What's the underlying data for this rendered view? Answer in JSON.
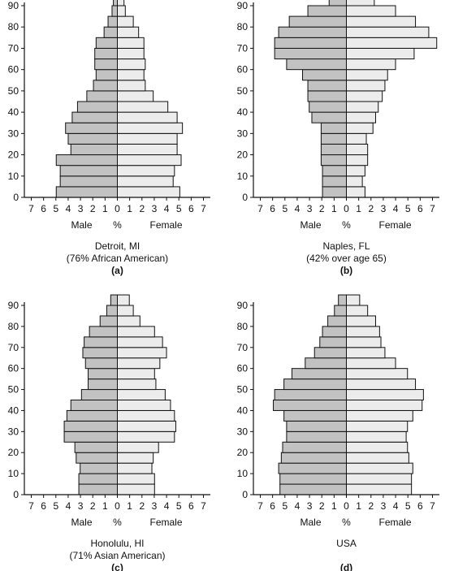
{
  "chart_data": [
    {
      "type": "bar",
      "panel_label": "(a)",
      "caption": [
        "Detroit, MI",
        "(76% African American)"
      ],
      "xlabel_left": "Male",
      "xlabel_mid": "%",
      "xlabel_right": "Female",
      "categories": [
        0,
        5,
        10,
        15,
        20,
        25,
        30,
        35,
        40,
        45,
        50,
        55,
        60,
        65,
        70,
        75,
        80,
        85,
        90
      ],
      "y_ticks": [
        0,
        10,
        20,
        30,
        40,
        50,
        60,
        70,
        80,
        90
      ],
      "x_ticks": [
        "7",
        "6",
        "5",
        "4",
        "3",
        "2",
        "1",
        "0",
        "1",
        "2",
        "3",
        "4",
        "5",
        "6",
        "7"
      ],
      "xlim": [
        -7,
        7
      ],
      "ylim": [
        0,
        95
      ],
      "series": [
        {
          "name": "Male",
          "values": [
            4.6,
            4.3,
            4.3,
            4.6,
            3.5,
            3.7,
            3.9,
            3.4,
            3.0,
            2.3,
            1.8,
            1.6,
            1.7,
            1.7,
            1.6,
            1.0,
            0.7,
            0.4,
            0.3
          ]
        },
        {
          "name": "Female",
          "values": [
            4.7,
            4.2,
            4.3,
            4.8,
            4.5,
            4.5,
            4.9,
            4.5,
            3.8,
            2.7,
            2.1,
            2.0,
            2.1,
            2.0,
            2.0,
            1.6,
            1.2,
            0.6,
            0.5
          ]
        }
      ]
    },
    {
      "type": "bar",
      "panel_label": "(b)",
      "caption": [
        "Naples, FL",
        "(42% over age 65)"
      ],
      "xlabel_left": "Male",
      "xlabel_mid": "%",
      "xlabel_right": "Female",
      "categories": [
        0,
        5,
        10,
        15,
        20,
        25,
        30,
        35,
        40,
        45,
        50,
        55,
        60,
        65,
        70,
        75,
        80,
        85,
        90
      ],
      "y_ticks": [
        0,
        10,
        20,
        30,
        40,
        50,
        60,
        70,
        80,
        90
      ],
      "x_ticks": [
        "7",
        "6",
        "5",
        "4",
        "3",
        "2",
        "1",
        "0",
        "1",
        "2",
        "3",
        "4",
        "5",
        "6",
        "7"
      ],
      "xlim": [
        -7,
        7
      ],
      "ylim": [
        0,
        95
      ],
      "series": [
        {
          "name": "Male",
          "values": [
            1.8,
            1.8,
            1.8,
            1.9,
            1.9,
            1.9,
            1.9,
            2.6,
            2.8,
            2.9,
            2.9,
            3.3,
            4.5,
            5.4,
            5.4,
            5.1,
            4.3,
            2.9,
            1.3
          ]
        },
        {
          "name": "Female",
          "values": [
            1.4,
            1.2,
            1.4,
            1.6,
            1.6,
            1.5,
            2.0,
            2.2,
            2.4,
            2.7,
            2.9,
            3.1,
            3.7,
            5.1,
            6.8,
            6.2,
            5.2,
            3.7,
            2.1
          ]
        }
      ]
    },
    {
      "type": "bar",
      "panel_label": "(c)",
      "caption": [
        "Honolulu, HI",
        "(71% Asian American)"
      ],
      "xlabel_left": "Male",
      "xlabel_mid": "%",
      "xlabel_right": "Female",
      "categories": [
        0,
        5,
        10,
        15,
        20,
        25,
        30,
        35,
        40,
        45,
        50,
        55,
        60,
        65,
        70,
        75,
        80,
        85,
        90
      ],
      "y_ticks": [
        0,
        10,
        20,
        30,
        40,
        50,
        60,
        70,
        80,
        90
      ],
      "x_ticks": [
        "7",
        "6",
        "5",
        "4",
        "3",
        "2",
        "1",
        "0",
        "1",
        "2",
        "3",
        "4",
        "5",
        "6",
        "7"
      ],
      "xlim": [
        -7,
        7
      ],
      "ylim": [
        0,
        95
      ],
      "series": [
        {
          "name": "Male",
          "values": [
            2.9,
            2.9,
            2.8,
            3.1,
            3.2,
            4.0,
            4.0,
            3.8,
            3.5,
            2.7,
            2.2,
            2.2,
            2.4,
            2.6,
            2.5,
            2.1,
            1.3,
            0.8,
            0.5
          ]
        },
        {
          "name": "Female",
          "values": [
            2.8,
            2.8,
            2.6,
            2.7,
            3.1,
            4.3,
            4.4,
            4.3,
            4.0,
            3.6,
            2.9,
            2.8,
            3.2,
            3.7,
            3.4,
            2.8,
            1.7,
            1.2,
            0.9
          ]
        }
      ]
    },
    {
      "type": "bar",
      "panel_label": "(d)",
      "caption": [
        "USA"
      ],
      "xlabel_left": "Male",
      "xlabel_mid": "%",
      "xlabel_right": "Female",
      "categories": [
        0,
        5,
        10,
        15,
        20,
        25,
        30,
        35,
        40,
        45,
        50,
        55,
        60,
        65,
        70,
        75,
        80,
        85,
        90
      ],
      "y_ticks": [
        0,
        10,
        20,
        30,
        40,
        50,
        60,
        70,
        80,
        90
      ],
      "x_ticks": [
        "7",
        "6",
        "5",
        "4",
        "3",
        "2",
        "1",
        "0",
        "1",
        "2",
        "3",
        "4",
        "5",
        "6",
        "7"
      ],
      "xlim": [
        -7,
        7
      ],
      "ylim": [
        0,
        95
      ],
      "series": [
        {
          "name": "Male",
          "values": [
            5.0,
            5.0,
            5.1,
            4.9,
            4.8,
            4.5,
            4.5,
            4.7,
            5.5,
            5.4,
            4.7,
            4.1,
            3.1,
            2.4,
            2.0,
            1.8,
            1.4,
            0.9,
            0.6
          ]
        },
        {
          "name": "Female",
          "values": [
            4.9,
            4.9,
            5.0,
            4.7,
            4.6,
            4.5,
            4.6,
            5.0,
            5.7,
            5.8,
            5.2,
            4.6,
            3.7,
            2.9,
            2.6,
            2.5,
            2.2,
            1.6,
            1.0
          ]
        }
      ]
    }
  ],
  "colors": {
    "male_fill": "#c2c2c2",
    "female_fill": "#ececec",
    "stroke": "#111111"
  }
}
